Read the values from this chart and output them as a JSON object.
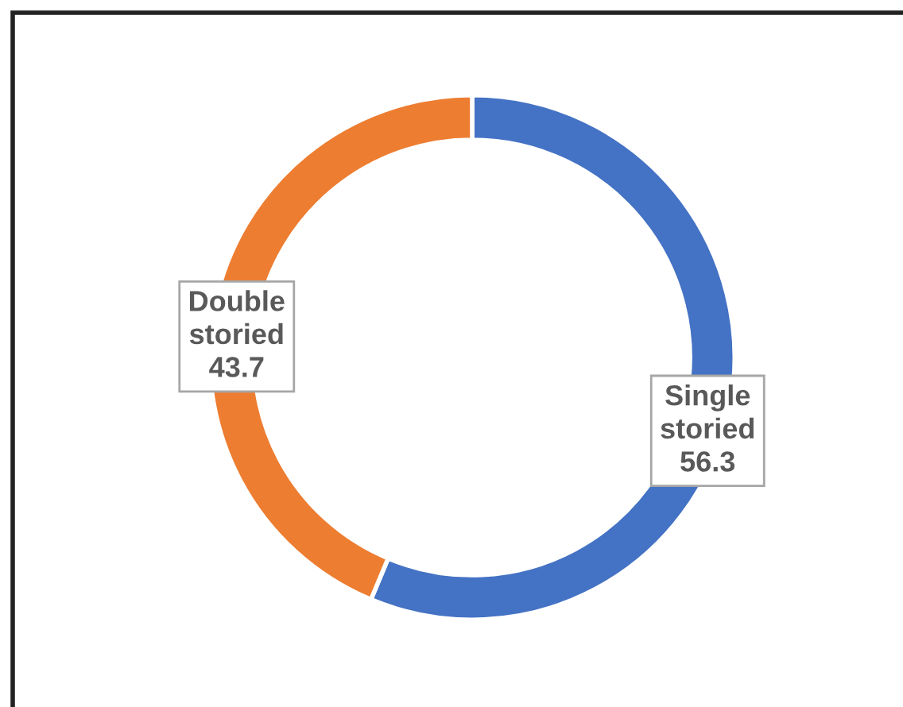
{
  "chart_data": {
    "type": "donut",
    "categories": [
      "Single storied",
      "Double storied"
    ],
    "values": [
      56.3,
      43.7
    ],
    "colors": [
      "#4472c4",
      "#ed7d31"
    ],
    "data_labels": true,
    "legend": false
  }
}
